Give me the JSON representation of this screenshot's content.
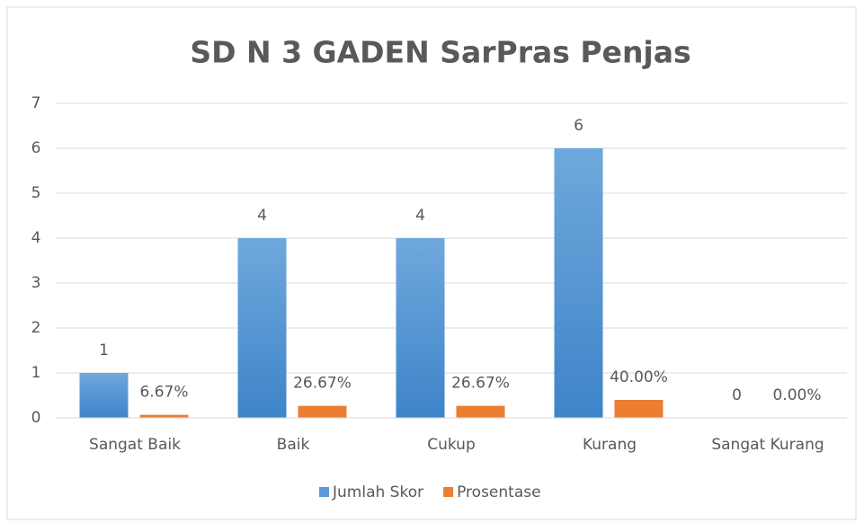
{
  "chart_data": {
    "type": "bar",
    "title": "SD N 3 GADEN SarPras Penjas",
    "categories": [
      "Sangat Baik",
      "Baik",
      "Cukup",
      "Kurang",
      "Sangat Kurang"
    ],
    "series": [
      {
        "name": "Jumlah Skor",
        "color": "#5b9bd5",
        "values": [
          1,
          4,
          4,
          6,
          0
        ],
        "value_labels": [
          "1",
          "4",
          "4",
          "6",
          "0"
        ]
      },
      {
        "name": "Prosentase",
        "color": "#ed7d31",
        "values": [
          0.0667,
          0.2667,
          0.2667,
          0.4,
          0
        ],
        "value_labels": [
          "6.67%",
          "26.67%",
          "26.67%",
          "40.00%",
          "0.00%"
        ]
      }
    ],
    "ylim": [
      0,
      7
    ],
    "yticks": [
      0,
      1,
      2,
      3,
      4,
      5,
      6,
      7
    ],
    "grid": true,
    "legend": "bottom"
  }
}
